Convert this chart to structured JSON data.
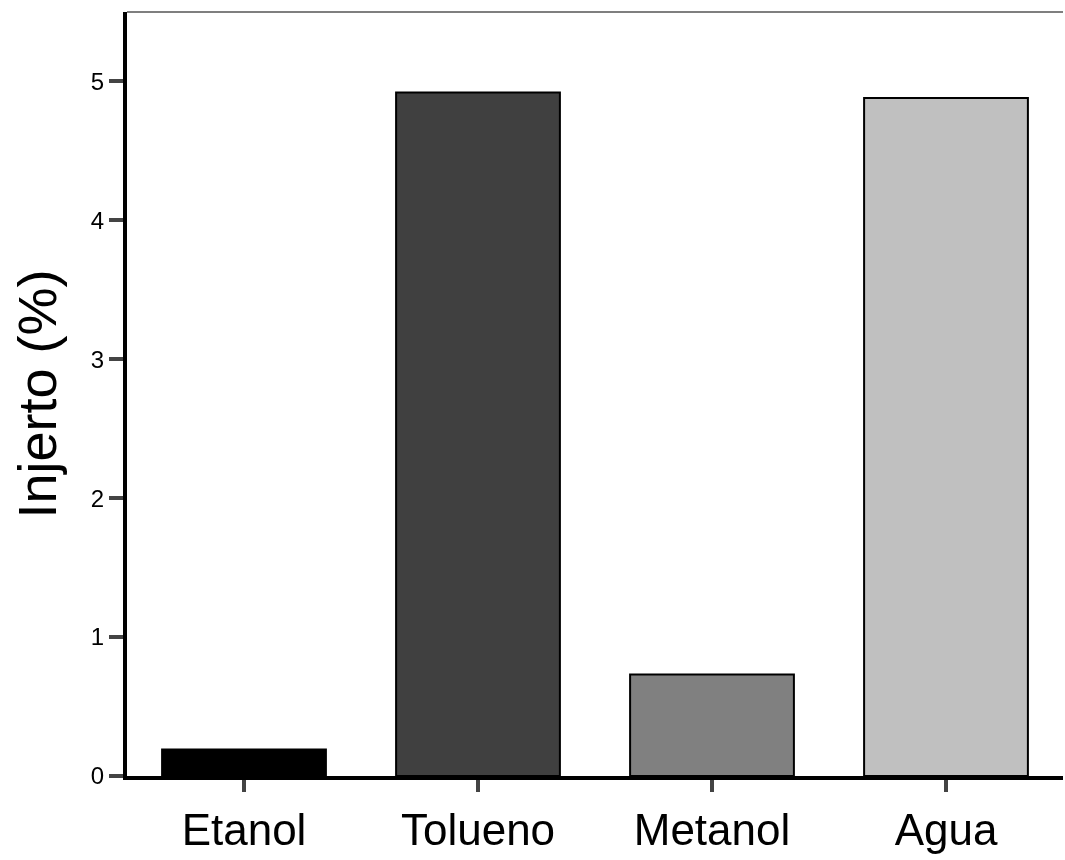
{
  "chart_data": {
    "type": "bar",
    "ylabel": "Injerto (%)",
    "categories": [
      "Etanol",
      "Tolueno",
      "Metanol",
      "Agua"
    ],
    "values": [
      0.19,
      4.92,
      0.73,
      4.88
    ],
    "colors": [
      "#000000",
      "#404040",
      "#808080",
      "#c0c0c0"
    ],
    "ylim": [
      0,
      5.5
    ],
    "yticks": [
      0,
      1,
      2,
      3,
      4,
      5
    ],
    "grid": false
  }
}
